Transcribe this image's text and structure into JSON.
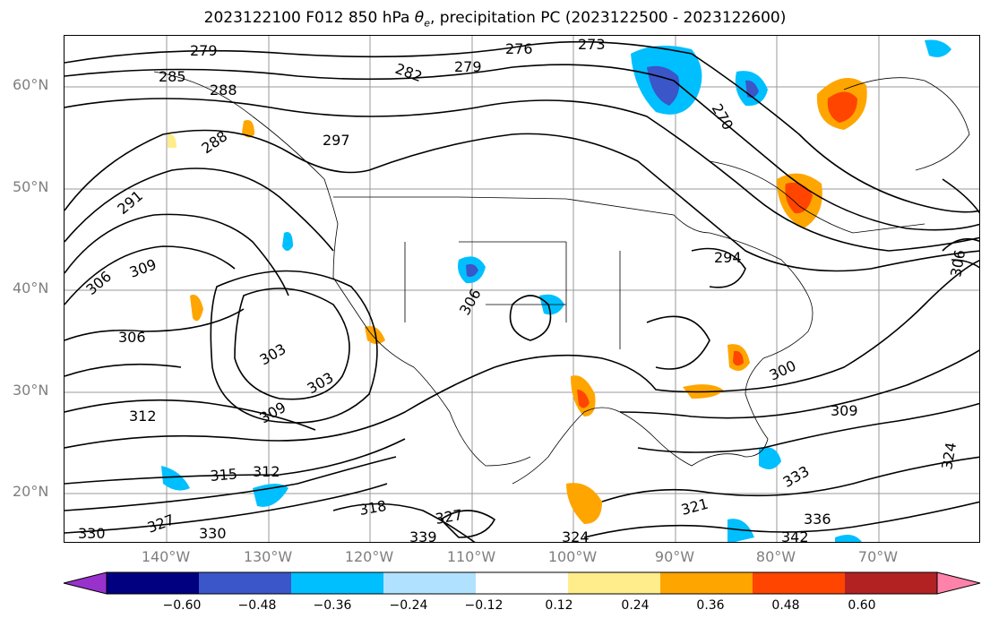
{
  "title_parts": {
    "prefix": "2023122100 F012 850 hPa ",
    "theta": "θ",
    "theta_sub": "e",
    "suffix": ", precipitation PC (2023122500 - 2023122600)"
  },
  "axes": {
    "lat_labels": [
      "60°N",
      "50°N",
      "40°N",
      "30°N",
      "20°N"
    ],
    "lon_labels": [
      "140°W",
      "130°W",
      "120°W",
      "110°W",
      "100°W",
      "90°W",
      "80°W",
      "70°W"
    ],
    "gridlines": true
  },
  "colorbar": {
    "ticks": [
      "−0.60",
      "−0.48",
      "−0.36",
      "−0.24",
      "−0.12",
      "0.12",
      "0.24",
      "0.36",
      "0.48",
      "0.60"
    ],
    "colors": {
      "under": "#9932cc",
      "bins": [
        "#000080",
        "#3a56c8",
        "#00bfff",
        "#b0e2ff",
        "#ffffff",
        "#ffec8b",
        "#ffa500",
        "#ff4500",
        "#b22222"
      ],
      "over": "#ff82ab"
    }
  },
  "contour_labels": {
    "t279": "279",
    "t285": "285",
    "t288": "288",
    "t282": "282",
    "t279b": "279",
    "t276": "276",
    "t273": "273",
    "t270": "270",
    "t297": "297",
    "t288b": "288",
    "t291": "291",
    "t306": "306",
    "t309": "309",
    "t306b": "306",
    "t306c": "306",
    "t303": "303",
    "t303b": "303",
    "t309b": "309",
    "t312": "312",
    "t294": "294",
    "t300": "300",
    "t309c": "309",
    "t315": "315",
    "t312b": "312",
    "t318": "318",
    "t327": "327",
    "t330": "330",
    "t330b": "330",
    "t339": "339",
    "t342": "342",
    "t324": "324",
    "t321": "321",
    "t336": "336",
    "t324b": "324",
    "t306d": "306",
    "t333": "333",
    "t327b": "327"
  }
}
